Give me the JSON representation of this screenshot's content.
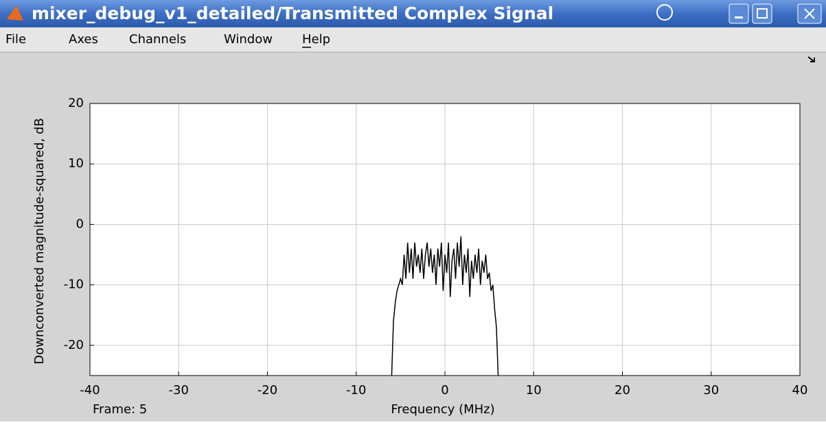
{
  "window": {
    "title": "mixer_debug_v1_detailed/Transmitted Complex Signal",
    "menu": [
      "File",
      "Axes",
      "Channels",
      "Window",
      "Help"
    ]
  },
  "chart_data": {
    "type": "line",
    "xlabel": "Frequency (MHz)",
    "ylabel": "Downconverted magnitude-squared, dB",
    "frame_label": "Frame: 5",
    "xlim": [
      -40,
      40
    ],
    "xticks": [
      -40,
      -30,
      -20,
      -10,
      0,
      10,
      20,
      30,
      40
    ],
    "ylim": [
      -25,
      20
    ],
    "yticks": [
      -20,
      -10,
      0,
      10,
      20
    ],
    "grid": true,
    "x": [
      -6.0,
      -5.8,
      -5.6,
      -5.4,
      -5.2,
      -5.0,
      -4.8,
      -4.6,
      -4.4,
      -4.2,
      -4.0,
      -3.8,
      -3.6,
      -3.4,
      -3.2,
      -3.0,
      -2.8,
      -2.6,
      -2.4,
      -2.2,
      -2.0,
      -1.8,
      -1.6,
      -1.4,
      -1.2,
      -1.0,
      -0.8,
      -0.6,
      -0.4,
      -0.2,
      0.0,
      0.2,
      0.4,
      0.6,
      0.8,
      1.0,
      1.2,
      1.4,
      1.6,
      1.8,
      2.0,
      2.2,
      2.4,
      2.6,
      2.8,
      3.0,
      3.2,
      3.4,
      3.6,
      3.8,
      4.0,
      4.2,
      4.4,
      4.6,
      4.8,
      5.0,
      5.2,
      5.4,
      5.6,
      5.8,
      6.0
    ],
    "series": [
      {
        "color": "#000000",
        "values": [
          -25,
          -16,
          -13,
          -11,
          -10,
          -9,
          -10,
          -5,
          -9,
          -3,
          -8,
          -4,
          -9,
          -3,
          -7,
          -5,
          -8,
          -4,
          -9,
          -5,
          -3,
          -7,
          -4,
          -8,
          -5,
          -10,
          -4,
          -7,
          -3,
          -11,
          -5,
          -8,
          -3,
          -12,
          -6,
          -4,
          -9,
          -3,
          -7,
          -2,
          -10,
          -5,
          -8,
          -4,
          -12,
          -6,
          -9,
          -5,
          -8,
          -4,
          -10,
          -6,
          -8,
          -5,
          -9,
          -8,
          -11,
          -10,
          -14,
          -17,
          -25
        ]
      }
    ]
  }
}
